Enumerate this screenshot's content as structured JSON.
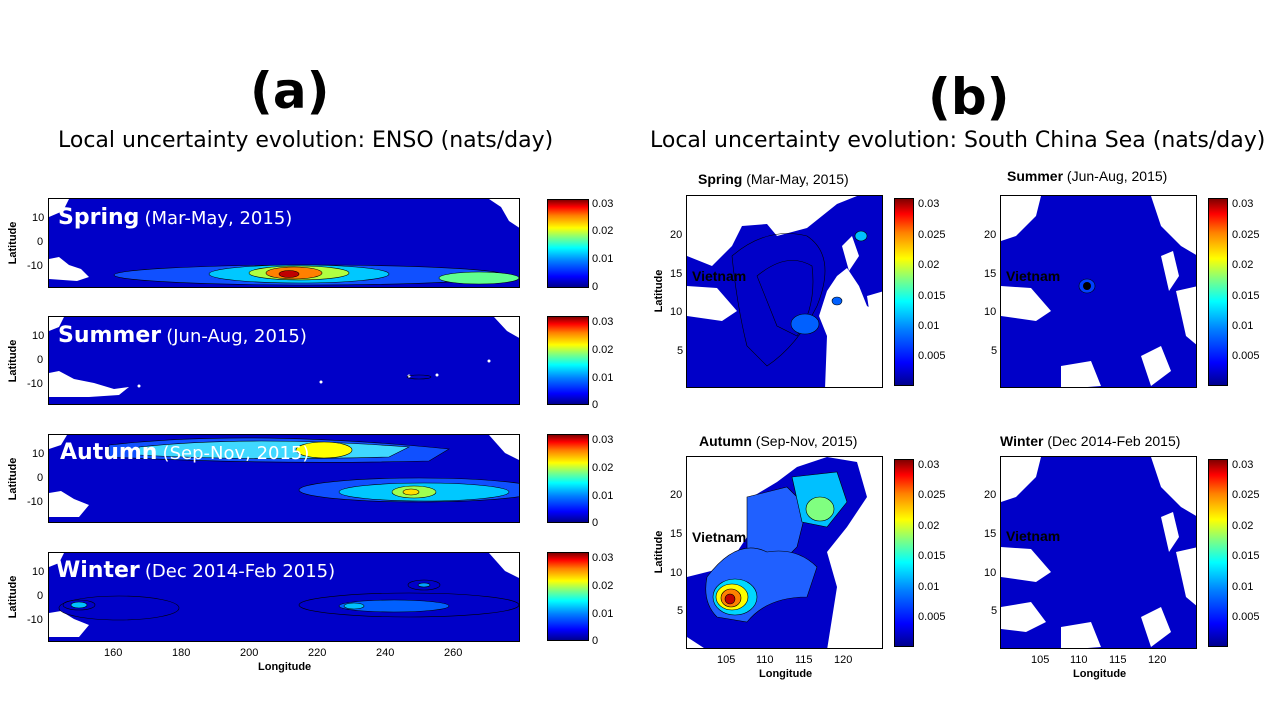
{
  "panel_a": {
    "letter": "(a)",
    "title": "Local uncertainty evolution: ENSO (nats/day)",
    "ylabel": "Latitude",
    "xlabel": "Longitude"
  },
  "panel_b": {
    "letter": "(b)",
    "title": "Local uncertainty evolution: South China Sea (nats/day)",
    "ylabel": "Latitude",
    "xlabel": "Longitude",
    "region_label": "Vietnam"
  },
  "colors": {
    "ocean": "#0000c8",
    "land": "#ffffff",
    "contour": "#000000"
  },
  "chart_data": [
    {
      "type": "heatmap",
      "panel": "a",
      "season": "Spring",
      "period": "(Mar-May, 2015)",
      "xlim": [
        140,
        278
      ],
      "ylim": [
        -17,
        17
      ],
      "yticks": [
        "10",
        "0",
        "-10"
      ],
      "xticks": [],
      "xlabel": "",
      "ylabel": "Latitude",
      "colorbar": {
        "range": [
          0,
          0.03
        ],
        "ticks": [
          "0.03",
          "0.02",
          "0.01",
          "0"
        ]
      },
      "features": [
        {
          "lon": 210,
          "lat": -10,
          "value": 0.03
        },
        {
          "lon": 230,
          "lat": -10,
          "value": 0.015
        },
        {
          "lon": 255,
          "lat": -12,
          "value": 0.012
        }
      ]
    },
    {
      "type": "heatmap",
      "panel": "a",
      "season": "Summer",
      "period": "(Jun-Aug, 2015)",
      "xlim": [
        140,
        278
      ],
      "ylim": [
        -17,
        17
      ],
      "yticks": [
        "10",
        "0",
        "-10"
      ],
      "xticks": [],
      "xlabel": "",
      "ylabel": "Latitude",
      "colorbar": {
        "range": [
          0,
          0.03
        ],
        "ticks": [
          "0.03",
          "0.02",
          "0.01",
          "0"
        ]
      },
      "features": []
    },
    {
      "type": "heatmap",
      "panel": "a",
      "season": "Autumn",
      "period": "(Sep-Nov, 2015)",
      "xlim": [
        140,
        278
      ],
      "ylim": [
        -17,
        17
      ],
      "yticks": [
        "10",
        "0",
        "-10"
      ],
      "xticks": [],
      "xlabel": "",
      "ylabel": "Latitude",
      "colorbar": {
        "range": [
          0,
          0.03
        ],
        "ticks": [
          "0.03",
          "0.02",
          "0.01",
          "0"
        ]
      },
      "features": [
        {
          "lon": 205,
          "lat": 10,
          "value": 0.018
        },
        {
          "lon": 220,
          "lat": 11,
          "value": 0.025
        },
        {
          "lon": 250,
          "lat": -4,
          "value": 0.017
        }
      ]
    },
    {
      "type": "heatmap",
      "panel": "a",
      "season": "Winter",
      "period": "(Dec 2014-Feb  2015)",
      "xlim": [
        140,
        278
      ],
      "ylim": [
        -17,
        17
      ],
      "yticks": [
        "10",
        "0",
        "-10"
      ],
      "xticks": [
        "160",
        "180",
        "200",
        "220",
        "240",
        "260"
      ],
      "xlabel": "Longitude",
      "ylabel": "Latitude",
      "colorbar": {
        "range": [
          0,
          0.03
        ],
        "ticks": [
          "0.03",
          "0.02",
          "0.01",
          "0"
        ]
      },
      "features": [
        {
          "lon": 150,
          "lat": -3,
          "value": 0.008
        },
        {
          "lon": 230,
          "lat": -3,
          "value": 0.008
        },
        {
          "lon": 250,
          "lat": 3,
          "value": 0.007
        }
      ]
    },
    {
      "type": "heatmap",
      "panel": "b",
      "season": "Spring",
      "period": "(Mar-May, 2015)",
      "xlim": [
        100,
        125
      ],
      "ylim": [
        0,
        25
      ],
      "yticks": [
        "20",
        "15",
        "10",
        "5"
      ],
      "xticks": [],
      "xlabel": "",
      "ylabel": "Latitude",
      "colorbar": {
        "range": [
          0,
          0.032
        ],
        "ticks": [
          "0.03",
          "0.025",
          "0.02",
          "0.015",
          "0.01",
          "0.005"
        ]
      },
      "features": []
    },
    {
      "type": "heatmap",
      "panel": "b",
      "season": "Summer",
      "period": "(Jun-Aug, 2015)",
      "xlim": [
        100,
        125
      ],
      "ylim": [
        0,
        25
      ],
      "yticks": [
        "20",
        "15",
        "10",
        "5"
      ],
      "xticks": [],
      "xlabel": "",
      "ylabel": "",
      "colorbar": {
        "range": [
          0,
          0.032
        ],
        "ticks": [
          "0.03",
          "0.025",
          "0.02",
          "0.015",
          "0.01",
          "0.005"
        ]
      },
      "features": [
        {
          "lon": 111,
          "lat": 13,
          "value": 0.004
        }
      ]
    },
    {
      "type": "heatmap",
      "panel": "b",
      "season": "Autumn",
      "period": "(Sep-Nov, 2015)",
      "xlim": [
        100,
        125
      ],
      "ylim": [
        0,
        25
      ],
      "yticks": [
        "20",
        "15",
        "10",
        "5"
      ],
      "xticks": [
        "105",
        "110",
        "115",
        "120"
      ],
      "xlabel": "Longitude",
      "ylabel": "Latitude",
      "colorbar": {
        "range": [
          0,
          0.032
        ],
        "ticks": [
          "0.03",
          "0.025",
          "0.02",
          "0.015",
          "0.01",
          "0.005"
        ]
      },
      "features": [
        {
          "lon": 106,
          "lat": 6,
          "value": 0.03
        },
        {
          "lon": 117,
          "lat": 19,
          "value": 0.014
        }
      ]
    },
    {
      "type": "heatmap",
      "panel": "b",
      "season": "Winter",
      "period": "(Dec 2014-Feb 2015)",
      "xlim": [
        100,
        125
      ],
      "ylim": [
        0,
        25
      ],
      "yticks": [
        "20",
        "15",
        "10",
        "5"
      ],
      "xticks": [
        "105",
        "110",
        "115",
        "120"
      ],
      "xlabel": "Longitude",
      "ylabel": "",
      "colorbar": {
        "range": [
          0,
          0.032
        ],
        "ticks": [
          "0.03",
          "0.025",
          "0.02",
          "0.015",
          "0.01",
          "0.005"
        ]
      },
      "features": []
    }
  ]
}
